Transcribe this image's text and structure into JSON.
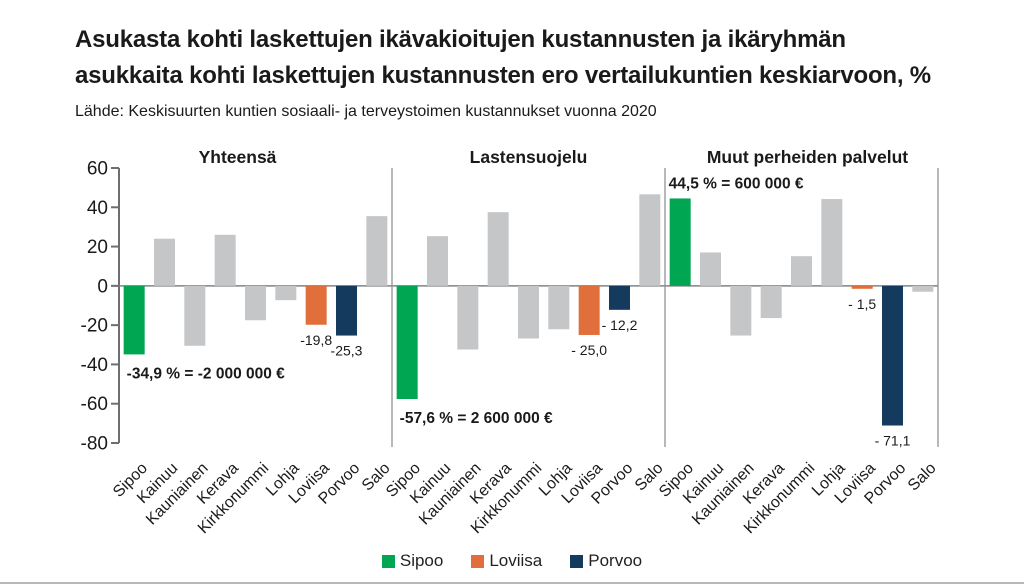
{
  "page": {
    "title_line1": "Asukasta kohti laskettujen ikävakioitujen kustannusten ja ikäryhmän",
    "title_line2": "asukkaita kohti laskettujen kustannusten ero vertailukuntien keskiarvoon, %",
    "source": "Lähde: Keskisuurten kuntien sosiaali- ja terveystoimen kustannukset vuonna 2020"
  },
  "chart_data": {
    "type": "bar",
    "unit": "%",
    "categories": [
      "Sipoo",
      "Kainuu",
      "Kauniainen",
      "Kerava",
      "Kirkkonummi",
      "Lohja",
      "Loviisa",
      "Porvoo",
      "Salo"
    ],
    "ylim": [
      -80,
      60
    ],
    "yticks": [
      60,
      40,
      20,
      0,
      -20,
      -40,
      -60,
      -80
    ],
    "grid": "off",
    "legend_position": "bottom",
    "bar_color_default": "#c5c6c8",
    "highlight_colors": {
      "Sipoo": "#00a651",
      "Loviisa": "#e06f3c",
      "Porvoo": "#143a5d"
    },
    "panels": [
      {
        "title": "Yhteensä",
        "values": [
          -34.9,
          24,
          -30.5,
          26,
          -17.5,
          -7.3,
          -19.8,
          -25.3,
          35.5
        ],
        "annotations": [
          {
            "bar": 0,
            "text": "-34,9 % = -2 000 000 €",
            "bold": true,
            "placement": "below-left"
          },
          {
            "bar": 6,
            "text": "-19,8",
            "bold": false,
            "placement": "below-center"
          },
          {
            "bar": 7,
            "text": "-25,3",
            "bold": false,
            "placement": "below-center"
          }
        ]
      },
      {
        "title": "Lastensuojelu",
        "values": [
          -57.6,
          25.3,
          -32.4,
          37.5,
          -26.8,
          -22.1,
          -25.0,
          -12.2,
          46.6
        ],
        "annotations": [
          {
            "bar": 0,
            "text": "-57,6 % = 2 600 000 €",
            "bold": true,
            "placement": "below-left"
          },
          {
            "bar": 6,
            "text": "- 25,0",
            "bold": false,
            "placement": "below-center"
          },
          {
            "bar": 7,
            "text": "- 12,2",
            "bold": false,
            "placement": "below-center"
          }
        ]
      },
      {
        "title": "Muut perheiden palvelut",
        "values": [
          44.5,
          17,
          -25.3,
          -16.4,
          15.1,
          44.2,
          -1.5,
          -71.1,
          -3.0
        ],
        "annotations": [
          {
            "bar": 0,
            "text": "44,5 % = 600 000 €",
            "bold": true,
            "placement": "above-left"
          },
          {
            "bar": 6,
            "text": "- 1,5",
            "bold": false,
            "placement": "below-center"
          },
          {
            "bar": 7,
            "text": "- 71,1",
            "bold": false,
            "placement": "below-center"
          }
        ]
      }
    ]
  },
  "legend": {
    "items": [
      {
        "label": "Sipoo",
        "color": "#00a651"
      },
      {
        "label": "Loviisa",
        "color": "#e06f3c"
      },
      {
        "label": "Porvoo",
        "color": "#143a5d"
      }
    ]
  }
}
